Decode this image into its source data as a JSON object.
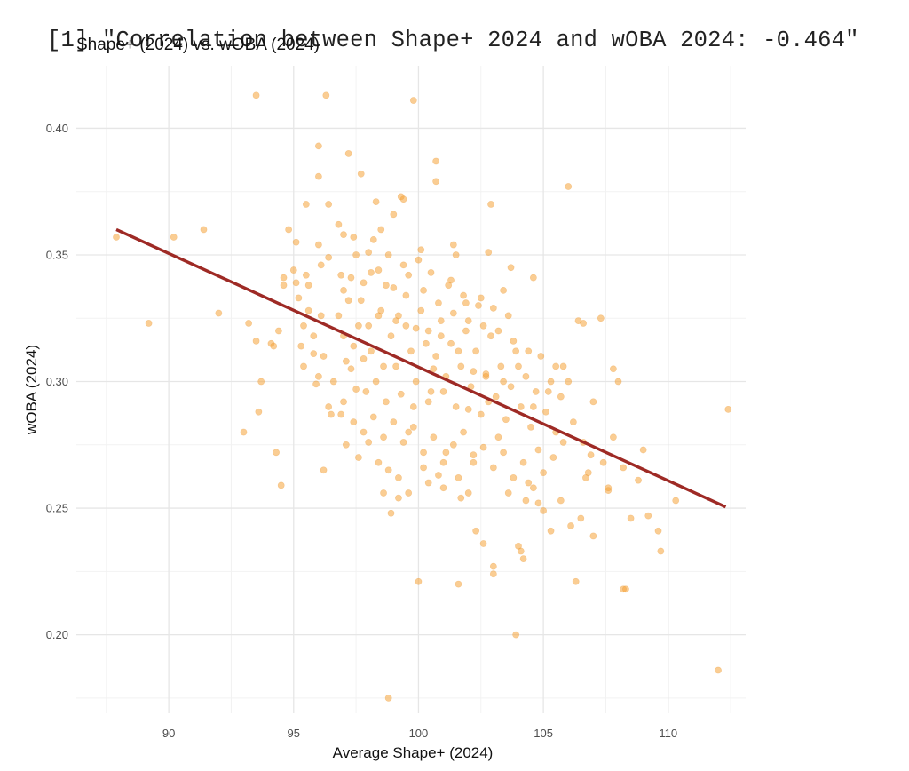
{
  "console": {
    "prompt": "[1]",
    "output": "\"Correlation between Shape+ 2024 and wOBA 2024: -0.464\""
  },
  "chart_data": {
    "type": "scatter",
    "title": "Shape+ (2024) vs. wOBA (2024)",
    "xlabel": "Average Shape+ (2024)",
    "ylabel": "wOBA (2024)",
    "xlim": [
      86.3,
      113.1
    ],
    "ylim": [
      0.169,
      0.4247
    ],
    "xticks": [
      90,
      95,
      100,
      105,
      110
    ],
    "xtick_labels": [
      "90",
      "95",
      "100",
      "105",
      "110"
    ],
    "yticks": [
      0.2,
      0.25,
      0.3,
      0.35,
      0.4
    ],
    "ytick_labels": [
      "0.20",
      "0.25",
      "0.30",
      "0.35",
      "0.40"
    ],
    "grid": true,
    "point_color": "#f5a43a",
    "line_color": "#9e2a25",
    "correlation": -0.464,
    "regression_line": {
      "x": [
        87.9,
        112.3
      ],
      "y": [
        0.36,
        0.2505
      ]
    },
    "points": [
      [
        87.9,
        0.357
      ],
      [
        89.2,
        0.323
      ],
      [
        90.2,
        0.357
      ],
      [
        91.4,
        0.36
      ],
      [
        92.0,
        0.327
      ],
      [
        93.0,
        0.28
      ],
      [
        93.2,
        0.323
      ],
      [
        93.5,
        0.413
      ],
      [
        93.5,
        0.316
      ],
      [
        93.7,
        0.3
      ],
      [
        93.6,
        0.288
      ],
      [
        94.1,
        0.315
      ],
      [
        94.2,
        0.314
      ],
      [
        94.3,
        0.272
      ],
      [
        94.4,
        0.32
      ],
      [
        94.5,
        0.259
      ],
      [
        94.6,
        0.338
      ],
      [
        94.6,
        0.341
      ],
      [
        94.8,
        0.36
      ],
      [
        95.0,
        0.344
      ],
      [
        95.1,
        0.339
      ],
      [
        95.1,
        0.355
      ],
      [
        95.2,
        0.333
      ],
      [
        95.3,
        0.314
      ],
      [
        95.4,
        0.306
      ],
      [
        95.5,
        0.37
      ],
      [
        95.5,
        0.342
      ],
      [
        95.6,
        0.338
      ],
      [
        95.8,
        0.311
      ],
      [
        95.9,
        0.299
      ],
      [
        96.0,
        0.393
      ],
      [
        96.0,
        0.381
      ],
      [
        96.0,
        0.354
      ],
      [
        96.1,
        0.346
      ],
      [
        96.1,
        0.326
      ],
      [
        96.2,
        0.265
      ],
      [
        96.3,
        0.413
      ],
      [
        96.4,
        0.37
      ],
      [
        96.4,
        0.349
      ],
      [
        96.5,
        0.287
      ],
      [
        96.8,
        0.362
      ],
      [
        96.9,
        0.287
      ],
      [
        97.0,
        0.358
      ],
      [
        97.0,
        0.336
      ],
      [
        97.1,
        0.308
      ],
      [
        97.1,
        0.275
      ],
      [
        97.2,
        0.39
      ],
      [
        97.3,
        0.341
      ],
      [
        97.4,
        0.357
      ],
      [
        97.5,
        0.297
      ],
      [
        97.7,
        0.382
      ],
      [
        97.7,
        0.332
      ],
      [
        97.8,
        0.309
      ],
      [
        98.0,
        0.351
      ],
      [
        98.0,
        0.276
      ],
      [
        98.1,
        0.343
      ],
      [
        98.3,
        0.371
      ],
      [
        98.4,
        0.326
      ],
      [
        98.5,
        0.36
      ],
      [
        98.6,
        0.256
      ],
      [
        98.7,
        0.338
      ],
      [
        98.8,
        0.265
      ],
      [
        98.9,
        0.248
      ],
      [
        99.0,
        0.366
      ],
      [
        99.1,
        0.324
      ],
      [
        99.2,
        0.254
      ],
      [
        99.3,
        0.373
      ],
      [
        99.4,
        0.372
      ],
      [
        99.5,
        0.334
      ],
      [
        99.6,
        0.28
      ],
      [
        99.8,
        0.411
      ],
      [
        99.9,
        0.321
      ],
      [
        100.0,
        0.221
      ],
      [
        100.1,
        0.352
      ],
      [
        100.2,
        0.266
      ],
      [
        100.4,
        0.292
      ],
      [
        100.6,
        0.305
      ],
      [
        100.7,
        0.387
      ],
      [
        100.7,
        0.379
      ],
      [
        100.8,
        0.263
      ],
      [
        100.9,
        0.318
      ],
      [
        101.1,
        0.272
      ],
      [
        101.3,
        0.34
      ],
      [
        101.4,
        0.354
      ],
      [
        101.5,
        0.35
      ],
      [
        101.6,
        0.22
      ],
      [
        101.7,
        0.254
      ],
      [
        101.9,
        0.331
      ],
      [
        102.0,
        0.289
      ],
      [
        102.2,
        0.271
      ],
      [
        102.3,
        0.241
      ],
      [
        102.5,
        0.333
      ],
      [
        102.6,
        0.236
      ],
      [
        102.7,
        0.302
      ],
      [
        102.8,
        0.351
      ],
      [
        102.9,
        0.37
      ],
      [
        103.0,
        0.224
      ],
      [
        103.0,
        0.227
      ],
      [
        103.2,
        0.278
      ],
      [
        103.4,
        0.336
      ],
      [
        103.7,
        0.345
      ],
      [
        103.9,
        0.2
      ],
      [
        104.0,
        0.235
      ],
      [
        104.1,
        0.233
      ],
      [
        104.2,
        0.23
      ],
      [
        104.3,
        0.253
      ],
      [
        104.4,
        0.26
      ],
      [
        104.6,
        0.341
      ],
      [
        104.8,
        0.273
      ],
      [
        105.0,
        0.249
      ],
      [
        105.3,
        0.241
      ],
      [
        105.5,
        0.306
      ],
      [
        105.7,
        0.253
      ],
      [
        105.8,
        0.276
      ],
      [
        106.0,
        0.377
      ],
      [
        106.1,
        0.243
      ],
      [
        106.3,
        0.221
      ],
      [
        106.4,
        0.324
      ],
      [
        106.5,
        0.246
      ],
      [
        106.6,
        0.323
      ],
      [
        106.7,
        0.262
      ],
      [
        106.9,
        0.271
      ],
      [
        107.0,
        0.239
      ],
      [
        107.3,
        0.325
      ],
      [
        107.6,
        0.257
      ],
      [
        107.8,
        0.305
      ],
      [
        108.0,
        0.3
      ],
      [
        108.2,
        0.218
      ],
      [
        108.3,
        0.218
      ],
      [
        108.5,
        0.246
      ],
      [
        108.8,
        0.261
      ],
      [
        109.0,
        0.273
      ],
      [
        109.2,
        0.247
      ],
      [
        109.6,
        0.241
      ],
      [
        109.7,
        0.233
      ],
      [
        110.3,
        0.253
      ],
      [
        112.0,
        0.186
      ],
      [
        112.4,
        0.289
      ],
      [
        98.8,
        0.175
      ]
    ],
    "cluster_points": {
      "note": "approximate dense central cloud (not individually readable)",
      "values": [
        [
          97.0,
          0.318
        ],
        [
          97.3,
          0.305
        ],
        [
          97.6,
          0.322
        ],
        [
          97.9,
          0.296
        ],
        [
          98.1,
          0.312
        ],
        [
          98.3,
          0.3
        ],
        [
          98.5,
          0.328
        ],
        [
          98.7,
          0.292
        ],
        [
          98.9,
          0.318
        ],
        [
          99.1,
          0.306
        ],
        [
          99.3,
          0.295
        ],
        [
          99.5,
          0.322
        ],
        [
          99.7,
          0.312
        ],
        [
          99.9,
          0.3
        ],
        [
          100.1,
          0.328
        ],
        [
          100.3,
          0.315
        ],
        [
          100.5,
          0.296
        ],
        [
          100.7,
          0.31
        ],
        [
          100.9,
          0.324
        ],
        [
          101.1,
          0.302
        ],
        [
          101.3,
          0.315
        ],
        [
          101.5,
          0.29
        ],
        [
          101.7,
          0.306
        ],
        [
          101.9,
          0.32
        ],
        [
          102.1,
          0.298
        ],
        [
          102.3,
          0.312
        ],
        [
          102.5,
          0.287
        ],
        [
          102.7,
          0.303
        ],
        [
          102.9,
          0.318
        ],
        [
          103.1,
          0.294
        ],
        [
          103.3,
          0.306
        ],
        [
          103.5,
          0.285
        ],
        [
          103.7,
          0.298
        ],
        [
          103.9,
          0.312
        ],
        [
          104.1,
          0.29
        ],
        [
          104.3,
          0.302
        ],
        [
          104.5,
          0.282
        ],
        [
          104.7,
          0.296
        ],
        [
          104.9,
          0.31
        ],
        [
          105.1,
          0.288
        ],
        [
          105.3,
          0.3
        ],
        [
          105.5,
          0.28
        ],
        [
          105.7,
          0.294
        ],
        [
          97.2,
          0.332
        ],
        [
          97.8,
          0.339
        ],
        [
          98.4,
          0.344
        ],
        [
          99.0,
          0.337
        ],
        [
          99.6,
          0.342
        ],
        [
          100.2,
          0.336
        ],
        [
          100.8,
          0.331
        ],
        [
          101.4,
          0.327
        ],
        [
          102.0,
          0.324
        ],
        [
          102.6,
          0.322
        ],
        [
          103.2,
          0.32
        ],
        [
          103.8,
          0.316
        ],
        [
          104.4,
          0.312
        ],
        [
          96.6,
          0.3
        ],
        [
          97.0,
          0.292
        ],
        [
          97.4,
          0.284
        ],
        [
          97.8,
          0.28
        ],
        [
          98.2,
          0.286
        ],
        [
          98.6,
          0.278
        ],
        [
          99.0,
          0.284
        ],
        [
          99.4,
          0.276
        ],
        [
          99.8,
          0.282
        ],
        [
          100.2,
          0.272
        ],
        [
          100.6,
          0.278
        ],
        [
          101.0,
          0.268
        ],
        [
          101.4,
          0.275
        ],
        [
          101.8,
          0.28
        ],
        [
          102.2,
          0.268
        ],
        [
          102.6,
          0.274
        ],
        [
          103.0,
          0.266
        ],
        [
          103.4,
          0.272
        ],
        [
          103.8,
          0.262
        ],
        [
          104.2,
          0.268
        ],
        [
          104.6,
          0.258
        ],
        [
          105.0,
          0.264
        ],
        [
          105.4,
          0.27
        ],
        [
          96.8,
          0.326
        ],
        [
          97.4,
          0.314
        ],
        [
          98.0,
          0.322
        ],
        [
          98.6,
          0.306
        ],
        [
          99.2,
          0.326
        ],
        [
          99.8,
          0.29
        ],
        [
          100.4,
          0.32
        ],
        [
          101.0,
          0.296
        ],
        [
          101.6,
          0.312
        ],
        [
          102.2,
          0.304
        ],
        [
          102.8,
          0.292
        ],
        [
          103.4,
          0.3
        ],
        [
          104.0,
          0.306
        ],
        [
          104.6,
          0.29
        ],
        [
          105.2,
          0.296
        ],
        [
          105.8,
          0.306
        ],
        [
          106.2,
          0.284
        ],
        [
          106.6,
          0.276
        ],
        [
          107.0,
          0.292
        ],
        [
          107.4,
          0.268
        ],
        [
          107.8,
          0.278
        ],
        [
          108.2,
          0.266
        ],
        [
          106.0,
          0.3
        ],
        [
          106.8,
          0.264
        ],
        [
          107.6,
          0.258
        ],
        [
          95.6,
          0.328
        ],
        [
          95.8,
          0.318
        ],
        [
          96.2,
          0.31
        ],
        [
          96.4,
          0.29
        ],
        [
          96.0,
          0.302
        ],
        [
          95.4,
          0.322
        ],
        [
          96.9,
          0.342
        ],
        [
          97.5,
          0.35
        ],
        [
          98.2,
          0.356
        ],
        [
          98.8,
          0.35
        ],
        [
          99.4,
          0.346
        ],
        [
          100.0,
          0.348
        ],
        [
          100.5,
          0.343
        ],
        [
          101.2,
          0.338
        ],
        [
          101.8,
          0.334
        ],
        [
          102.4,
          0.33
        ],
        [
          103.0,
          0.329
        ],
        [
          103.6,
          0.326
        ],
        [
          99.2,
          0.262
        ],
        [
          99.6,
          0.256
        ],
        [
          100.4,
          0.26
        ],
        [
          101.0,
          0.258
        ],
        [
          101.6,
          0.262
        ],
        [
          102.0,
          0.256
        ],
        [
          103.6,
          0.256
        ],
        [
          104.8,
          0.252
        ],
        [
          98.4,
          0.268
        ],
        [
          97.6,
          0.27
        ]
      ]
    }
  }
}
